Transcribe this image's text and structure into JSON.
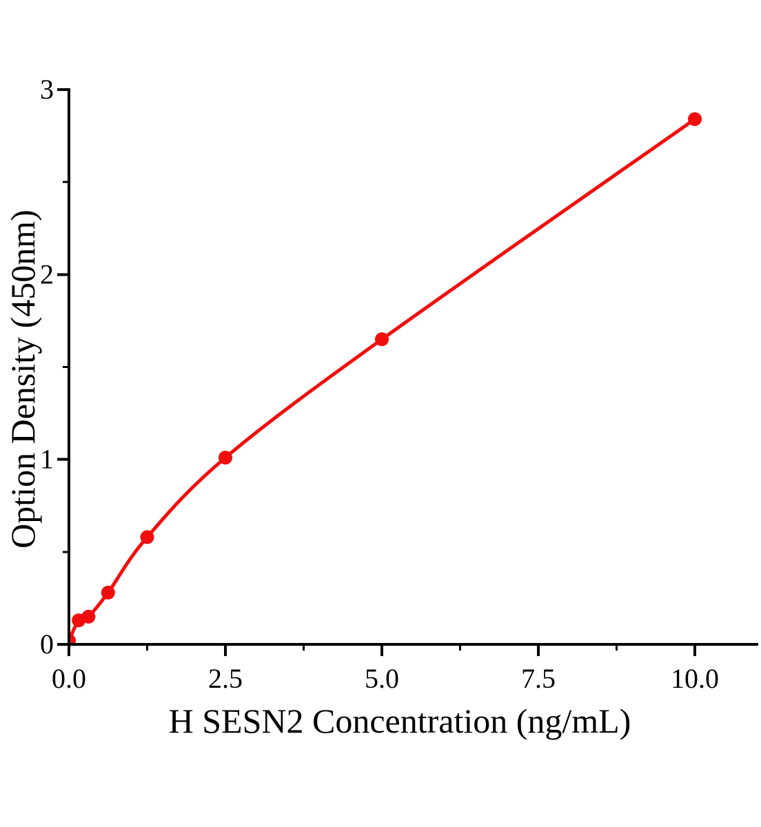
{
  "chart_data": {
    "type": "scatter",
    "title": "",
    "xlabel": "H SESN2 Concentration（ng/mL）",
    "ylabel": "Option Density（450nm）",
    "x": [
      0,
      0.156,
      0.313,
      0.625,
      1.25,
      2.5,
      5,
      10
    ],
    "y": [
      0.02,
      0.13,
      0.15,
      0.28,
      0.58,
      1.01,
      1.65,
      2.84
    ],
    "curve_style": "smooth fitted line through all points",
    "xlim": [
      0,
      11
    ],
    "ylim": [
      0,
      3
    ],
    "x_major_ticks": [
      0,
      2.5,
      5,
      7.5,
      10
    ],
    "x_major_labels": [
      "0.0",
      "2.5",
      "5.0",
      "7.5",
      "10.0"
    ],
    "x_minor_ticks": [
      1.25,
      3.75,
      6.25,
      8.75
    ],
    "y_major_ticks": [
      0,
      1,
      2,
      3
    ],
    "y_major_labels": [
      "0",
      "1",
      "2",
      "3"
    ],
    "y_minor_ticks": [
      0.5,
      1.5,
      2.5
    ],
    "grid": false,
    "legend": "none",
    "colors": {
      "series": "#f20d0d",
      "axis": "#000000",
      "background": "#ffffff"
    }
  }
}
